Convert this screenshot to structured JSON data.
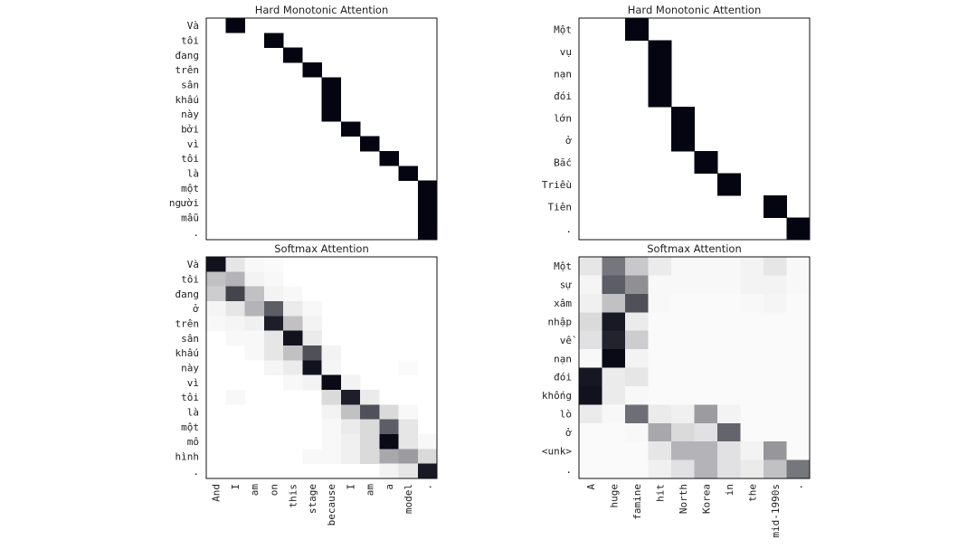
{
  "chart_data": [
    {
      "type": "heatmap",
      "title": "Hard Monotonic Attention",
      "rows": [
        "Và",
        "tôi",
        "đang",
        "trên",
        "sân",
        "khấu",
        "này",
        "bởi",
        "vì",
        "tôi",
        "là",
        "một",
        "người",
        "mẫu",
        "."
      ],
      "cols": [
        "And",
        "I",
        "am",
        "on",
        "this",
        "stage",
        "because",
        "I",
        "am",
        "a",
        "model",
        "."
      ],
      "values": [
        [
          0,
          1,
          0,
          0,
          0,
          0,
          0,
          0,
          0,
          0,
          0,
          0
        ],
        [
          0,
          0,
          0,
          1,
          0,
          0,
          0,
          0,
          0,
          0,
          0,
          0
        ],
        [
          0,
          0,
          0,
          0,
          1,
          0,
          0,
          0,
          0,
          0,
          0,
          0
        ],
        [
          0,
          0,
          0,
          0,
          0,
          1,
          0,
          0,
          0,
          0,
          0,
          0
        ],
        [
          0,
          0,
          0,
          0,
          0,
          0,
          1,
          0,
          0,
          0,
          0,
          0
        ],
        [
          0,
          0,
          0,
          0,
          0,
          0,
          1,
          0,
          0,
          0,
          0,
          0
        ],
        [
          0,
          0,
          0,
          0,
          0,
          0,
          1,
          0,
          0,
          0,
          0,
          0
        ],
        [
          0,
          0,
          0,
          0,
          0,
          0,
          0,
          1,
          0,
          0,
          0,
          0
        ],
        [
          0,
          0,
          0,
          0,
          0,
          0,
          0,
          0,
          1,
          0,
          0,
          0
        ],
        [
          0,
          0,
          0,
          0,
          0,
          0,
          0,
          0,
          0,
          1,
          0,
          0
        ],
        [
          0,
          0,
          0,
          0,
          0,
          0,
          0,
          0,
          0,
          0,
          1,
          0
        ],
        [
          0,
          0,
          0,
          0,
          0,
          0,
          0,
          0,
          0,
          0,
          0,
          1
        ],
        [
          0,
          0,
          0,
          0,
          0,
          0,
          0,
          0,
          0,
          0,
          0,
          1
        ],
        [
          0,
          0,
          0,
          0,
          0,
          0,
          0,
          0,
          0,
          0,
          0,
          1
        ],
        [
          0,
          0,
          0,
          0,
          0,
          0,
          0,
          0,
          0,
          0,
          0,
          1
        ]
      ]
    },
    {
      "type": "heatmap",
      "title": "Hard Monotonic Attention",
      "rows": [
        "Một",
        "vụ",
        "nạn",
        "đói",
        "lớn",
        "ở",
        "Bắc",
        "Triều",
        "Tiên",
        "."
      ],
      "cols": [
        "A",
        "huge",
        "famine",
        "hit",
        "North",
        "Korea",
        "in",
        "the",
        "mid-1990s",
        "."
      ],
      "values": [
        [
          0,
          0,
          1,
          0,
          0,
          0,
          0,
          0,
          0,
          0
        ],
        [
          0,
          0,
          0,
          1,
          0,
          0,
          0,
          0,
          0,
          0
        ],
        [
          0,
          0,
          0,
          1,
          0,
          0,
          0,
          0,
          0,
          0
        ],
        [
          0,
          0,
          0,
          1,
          0,
          0,
          0,
          0,
          0,
          0
        ],
        [
          0,
          0,
          0,
          0,
          1,
          0,
          0,
          0,
          0,
          0
        ],
        [
          0,
          0,
          0,
          0,
          1,
          0,
          0,
          0,
          0,
          0
        ],
        [
          0,
          0,
          0,
          0,
          0,
          1,
          0,
          0,
          0,
          0
        ],
        [
          0,
          0,
          0,
          0,
          0,
          0,
          1,
          0,
          0,
          0
        ],
        [
          0,
          0,
          0,
          0,
          0,
          0,
          0,
          0,
          1,
          0
        ],
        [
          0,
          0,
          0,
          0,
          0,
          0,
          0,
          0,
          0,
          1
        ]
      ]
    },
    {
      "type": "heatmap",
      "title": "Softmax Attention",
      "xlabels_shown": true,
      "rows": [
        "Và",
        "tôi",
        "đang",
        "ở",
        "trên",
        "sân",
        "khấu",
        "này",
        "vì",
        "tôi",
        "là",
        "một",
        "mô",
        "hình",
        "."
      ],
      "cols": [
        "And",
        "I",
        "am",
        "on",
        "this",
        "stage",
        "because",
        "I",
        "am",
        "a",
        "model",
        "."
      ],
      "values": [
        [
          0.95,
          0.1,
          0.03,
          0.02,
          0,
          0,
          0,
          0,
          0,
          0,
          0,
          0
        ],
        [
          0.25,
          0.3,
          0.05,
          0.03,
          0,
          0,
          0,
          0,
          0,
          0,
          0,
          0
        ],
        [
          0.2,
          0.75,
          0.25,
          0.05,
          0.03,
          0,
          0,
          0,
          0,
          0,
          0,
          0
        ],
        [
          0.04,
          0.1,
          0.3,
          0.65,
          0.08,
          0.03,
          0,
          0,
          0,
          0,
          0,
          0
        ],
        [
          0.03,
          0.04,
          0.06,
          0.9,
          0.25,
          0.05,
          0,
          0,
          0,
          0,
          0,
          0
        ],
        [
          0,
          0.03,
          0.03,
          0.1,
          0.95,
          0.08,
          0,
          0,
          0,
          0,
          0,
          0
        ],
        [
          0,
          0,
          0.03,
          0.1,
          0.25,
          0.7,
          0.05,
          0,
          0,
          0,
          0,
          0
        ],
        [
          0,
          0,
          0,
          0.04,
          0.08,
          0.95,
          0.04,
          0,
          0,
          0,
          0.02,
          0
        ],
        [
          0,
          0,
          0,
          0,
          0.03,
          0.05,
          0.98,
          0.05,
          0,
          0,
          0,
          0
        ],
        [
          0,
          0.03,
          0,
          0,
          0,
          0,
          0.15,
          0.9,
          0.08,
          0,
          0,
          0
        ],
        [
          0,
          0,
          0,
          0,
          0,
          0,
          0.05,
          0.25,
          0.7,
          0.15,
          0.03,
          0
        ],
        [
          0,
          0,
          0,
          0,
          0,
          0,
          0.03,
          0.08,
          0.15,
          0.65,
          0.1,
          0
        ],
        [
          0,
          0,
          0,
          0,
          0,
          0,
          0.03,
          0.06,
          0.15,
          0.98,
          0.1,
          0.03
        ],
        [
          0,
          0,
          0,
          0,
          0,
          0.03,
          0.03,
          0.06,
          0.15,
          0.35,
          0.4,
          0.15
        ],
        [
          0,
          0,
          0,
          0,
          0,
          0,
          0,
          0,
          0,
          0.05,
          0.1,
          0.92
        ]
      ]
    },
    {
      "type": "heatmap",
      "title": "Softmax Attention",
      "xlabels_shown": true,
      "rows": [
        "Một",
        "sự",
        "xâm",
        "nhập",
        "về",
        "nạn",
        "đói",
        "khống",
        "lò",
        "ở",
        "<unk>",
        "."
      ],
      "cols": [
        "A",
        "huge",
        "famine",
        "hit",
        "North",
        "Korea",
        "in",
        "the",
        "mid-1990s",
        "."
      ],
      "values": [
        [
          0.1,
          0.55,
          0.22,
          0.08,
          0.03,
          0.03,
          0.03,
          0.05,
          0.1,
          0.03
        ],
        [
          0.04,
          0.65,
          0.45,
          0.03,
          0.03,
          0.03,
          0.03,
          0.05,
          0.05,
          0.03
        ],
        [
          0.06,
          0.25,
          0.7,
          0.03,
          0.02,
          0.02,
          0.02,
          0.03,
          0.04,
          0.02
        ],
        [
          0.15,
          0.92,
          0.08,
          0.02,
          0.02,
          0.02,
          0.02,
          0.02,
          0.02,
          0.02
        ],
        [
          0.12,
          0.88,
          0.2,
          0.02,
          0.02,
          0.02,
          0.02,
          0.02,
          0.02,
          0.02
        ],
        [
          0.03,
          0.98,
          0.05,
          0.02,
          0.02,
          0.02,
          0.02,
          0.02,
          0.02,
          0.02
        ],
        [
          0.93,
          0.08,
          0.1,
          0.02,
          0.02,
          0.02,
          0.02,
          0.02,
          0.02,
          0.02
        ],
        [
          0.95,
          0.08,
          0.03,
          0.02,
          0.02,
          0.02,
          0.02,
          0.02,
          0.02,
          0.02
        ],
        [
          0.08,
          0.03,
          0.58,
          0.08,
          0.06,
          0.4,
          0.05,
          0.02,
          0.02,
          0.02
        ],
        [
          0.02,
          0.02,
          0.03,
          0.35,
          0.15,
          0.12,
          0.62,
          0.02,
          0.02,
          0.02
        ],
        [
          0.02,
          0.02,
          0.02,
          0.1,
          0.3,
          0.3,
          0.12,
          0.05,
          0.42,
          0.02
        ],
        [
          0.02,
          0.02,
          0.02,
          0.06,
          0.12,
          0.3,
          0.12,
          0.08,
          0.25,
          0.55
        ]
      ]
    }
  ]
}
